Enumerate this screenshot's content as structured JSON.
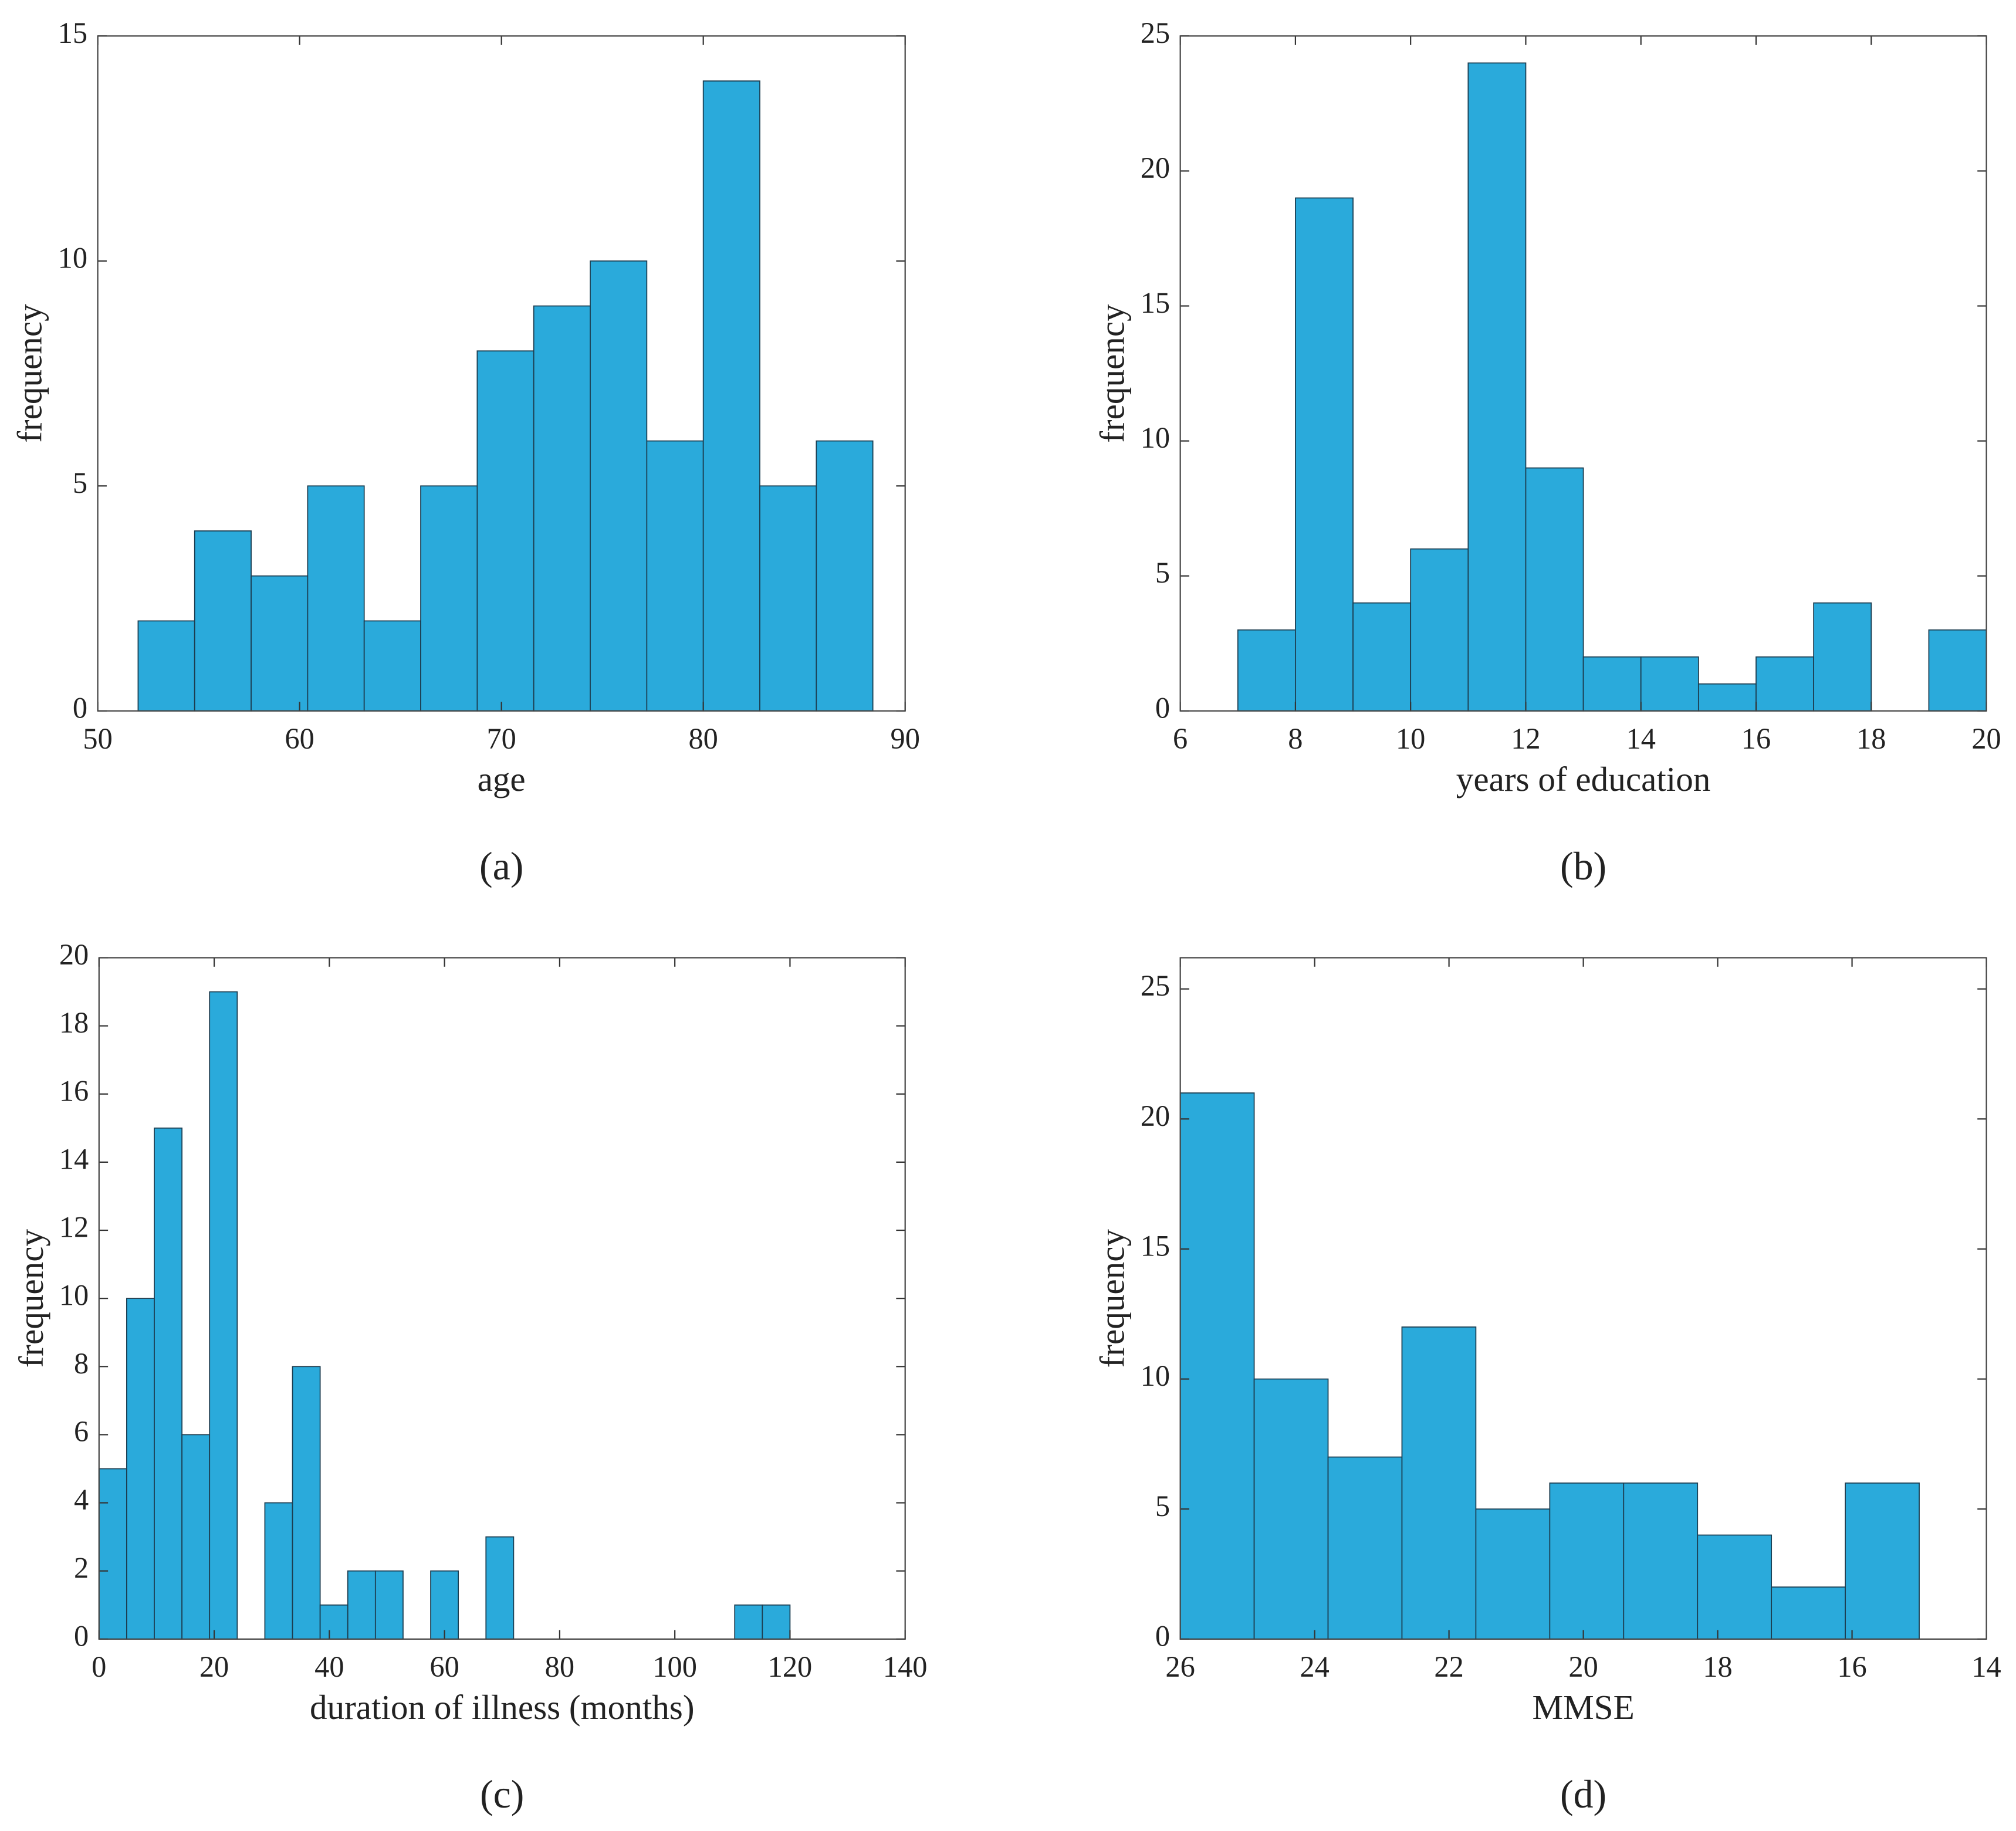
{
  "chart_data": [
    {
      "type": "histogram",
      "caption": "(a)",
      "xlabel": "age",
      "ylabel": "frequency",
      "bins": [
        52,
        54.8,
        57.6,
        60.4,
        63.2,
        66.0,
        68.8,
        71.6,
        74.4,
        77.2,
        80.0,
        82.8,
        85.6,
        88.4
      ],
      "counts": [
        2,
        4,
        3,
        5,
        2,
        5,
        8,
        9,
        10,
        6,
        14,
        5,
        6
      ],
      "color": "#2aaadb",
      "xlim": [
        50,
        90
      ],
      "xticks": [
        50,
        60,
        70,
        80,
        90
      ],
      "ylim": [
        0,
        15
      ],
      "yticks": [
        0,
        5,
        10,
        15
      ]
    },
    {
      "type": "histogram",
      "caption": "(b)",
      "xlabel": "years of education",
      "ylabel": "frequency",
      "bins": [
        7,
        8,
        9,
        10,
        11,
        12,
        13,
        14,
        15,
        16,
        17,
        18,
        19,
        20
      ],
      "counts": [
        3,
        19,
        4,
        6,
        24,
        9,
        2,
        2,
        1,
        2,
        4,
        0,
        3
      ],
      "color": "#2aaadb",
      "xlim": [
        6,
        20
      ],
      "xticks": [
        6,
        8,
        10,
        12,
        14,
        16,
        18,
        20
      ],
      "ylim": [
        0,
        25
      ],
      "yticks": [
        0,
        5,
        10,
        15,
        20,
        25
      ]
    },
    {
      "type": "histogram",
      "caption": "(c)",
      "xlabel": "duration of illness (months)",
      "ylabel": "frequency",
      "bins": [
        0,
        4.8,
        9.6,
        14.4,
        19.2,
        24,
        28.8,
        33.6,
        38.4,
        43.2,
        48,
        52.8,
        57.6,
        62.4,
        67.2,
        72,
        76.8,
        81.6,
        86.4,
        91.2,
        96,
        100.8,
        105.6,
        110.4,
        115.2,
        120
      ],
      "counts": [
        5,
        10,
        15,
        6,
        19,
        0,
        4,
        8,
        1,
        2,
        2,
        0,
        2,
        0,
        3,
        0,
        0,
        0,
        0,
        0,
        0,
        0,
        0,
        1,
        1
      ],
      "color": "#2aaadb",
      "xlim": [
        0,
        140
      ],
      "xticks": [
        0,
        20,
        40,
        60,
        80,
        100,
        120,
        140
      ],
      "ylim": [
        0,
        20
      ],
      "yticks": [
        0,
        2,
        4,
        6,
        8,
        10,
        12,
        14,
        16,
        18,
        20
      ]
    },
    {
      "type": "histogram",
      "caption": "(d)",
      "xlabel": "MMSE",
      "ylabel": "frequency",
      "bins": [
        26,
        24.9,
        23.8,
        22.7,
        21.6,
        20.5,
        19.4,
        18.3,
        17.2,
        16.1,
        15
      ],
      "counts": [
        21,
        10,
        7,
        12,
        5,
        6,
        6,
        4,
        2,
        6
      ],
      "color": "#2aaadb",
      "xlim": [
        26,
        14
      ],
      "xreverse": true,
      "xticks": [
        26,
        24,
        22,
        20,
        18,
        16,
        14
      ],
      "ylim": [
        0,
        26.2
      ],
      "yticks": [
        0,
        5,
        10,
        15,
        20,
        25
      ]
    }
  ]
}
